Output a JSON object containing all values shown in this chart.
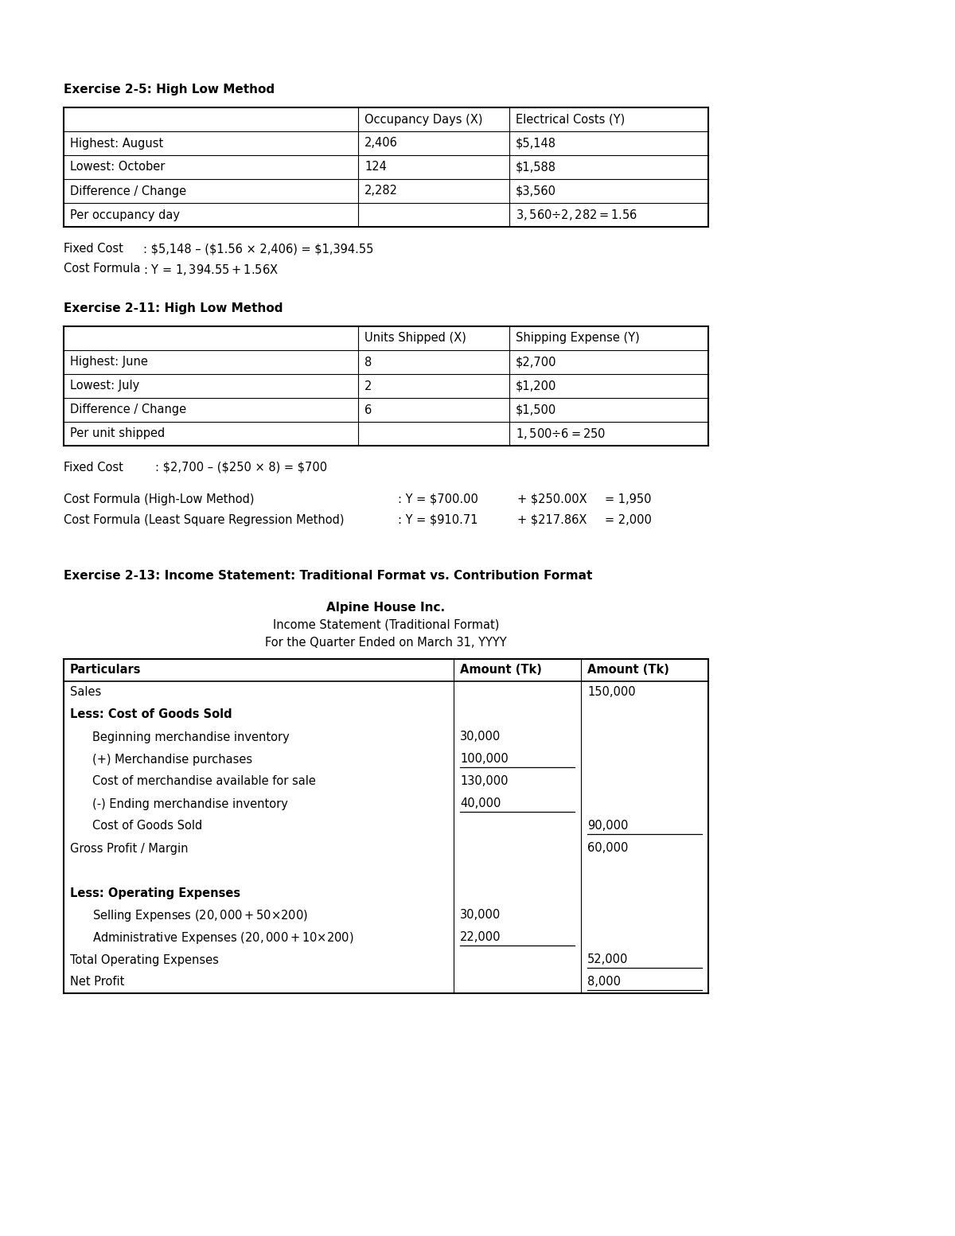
{
  "bg_color": "#ffffff",
  "page_width": 12.0,
  "page_height": 15.53,
  "ex25_title": "Exercise 2-5: High Low Method",
  "ex25_headers": [
    "",
    "Occupancy Days (X)",
    "Electrical Costs (Y)"
  ],
  "ex25_rows": [
    [
      "Highest: August",
      "2,406",
      "$5,148"
    ],
    [
      "Lowest: October",
      "124",
      "$1,588"
    ],
    [
      "Difference / Change",
      "2,282",
      "$3,560"
    ],
    [
      "Per occupancy day",
      "",
      "$3,560 ÷ 2,282 = $1.56"
    ]
  ],
  "ex25_fixed_cost_label": "Fixed Cost",
  "ex25_fixed_cost_val": ": $5,148 – ($1.56 × 2,406) = $1,394.55",
  "ex25_formula_label": "Cost Formula",
  "ex25_formula_val": ": Y = $1,394.55 + $1.56X",
  "ex211_title": "Exercise 2-11: High Low Method",
  "ex211_headers": [
    "",
    "Units Shipped (X)",
    "Shipping Expense (Y)"
  ],
  "ex211_rows": [
    [
      "Highest: June",
      "8",
      "$2,700"
    ],
    [
      "Lowest: July",
      "2",
      "$1,200"
    ],
    [
      "Difference / Change",
      "6",
      "$1,500"
    ],
    [
      "Per unit shipped",
      "",
      "$1,500 ÷ 6 = $250"
    ]
  ],
  "ex211_fixed_cost_label": "Fixed Cost",
  "ex211_fixed_cost_val": ": $2,700 – ($250 × 8) = $700",
  "ex211_cf_hlm_label": "Cost Formula (High-Low Method)",
  "ex211_cf_hlm_val": ": Y = $700.00",
  "ex211_cf_hlm_val2": "+ $250.00X",
  "ex211_cf_hlm_val3": "= 1,950",
  "ex211_cf_lsr_label": "Cost Formula (Least Square Regression Method)",
  "ex211_cf_lsr_val": ": Y = $910.71",
  "ex211_cf_lsr_val2": "+ $217.86X",
  "ex211_cf_lsr_val3": "= 2,000",
  "ex213_title": "Exercise 2-13: Income Statement: Traditional Format vs. Contribution Format",
  "ex213_company": "Alpine House Inc.",
  "ex213_stmt_type": "Income Statement (Traditional Format)",
  "ex213_period": "For the Quarter Ended on March 31, YYYY",
  "ex213_col_headers": [
    "Particulars",
    "Amount (Tk)",
    "Amount (Tk)"
  ],
  "ex213_rows": [
    {
      "label": "Sales",
      "indent": 0,
      "amt1": "",
      "amt2": "150,000",
      "bold": false,
      "underline1": false,
      "underline2": false
    },
    {
      "label": "Less: Cost of Goods Sold",
      "indent": 0,
      "amt1": "",
      "amt2": "",
      "bold": true,
      "underline1": false,
      "underline2": false
    },
    {
      "label": "Beginning merchandise inventory",
      "indent": 1,
      "amt1": "30,000",
      "amt2": "",
      "bold": false,
      "underline1": false,
      "underline2": false
    },
    {
      "label": "(+) Merchandise purchases",
      "indent": 1,
      "amt1": "100,000",
      "amt2": "",
      "bold": false,
      "underline1": true,
      "underline2": false
    },
    {
      "label": "Cost of merchandise available for sale",
      "indent": 1,
      "amt1": "130,000",
      "amt2": "",
      "bold": false,
      "underline1": false,
      "underline2": false
    },
    {
      "label": "(-) Ending merchandise inventory",
      "indent": 1,
      "amt1": "40,000",
      "amt2": "",
      "bold": false,
      "underline1": true,
      "underline2": false
    },
    {
      "label": "Cost of Goods Sold",
      "indent": 1,
      "amt1": "",
      "amt2": "90,000",
      "bold": false,
      "underline1": false,
      "underline2": true
    },
    {
      "label": "Gross Profit / Margin",
      "indent": 0,
      "amt1": "",
      "amt2": "60,000",
      "bold": false,
      "underline1": false,
      "underline2": false
    },
    {
      "label": "",
      "indent": 0,
      "amt1": "",
      "amt2": "",
      "bold": false,
      "underline1": false,
      "underline2": false
    },
    {
      "label": "Less: Operating Expenses",
      "indent": 0,
      "amt1": "",
      "amt2": "",
      "bold": true,
      "underline1": false,
      "underline2": false
    },
    {
      "label": "Selling Expenses ($20,000 + $50×200)",
      "indent": 1,
      "amt1": "30,000",
      "amt2": "",
      "bold": false,
      "underline1": false,
      "underline2": false
    },
    {
      "label": "Administrative Expenses ($20,000 + $10×200)",
      "indent": 1,
      "amt1": "22,000",
      "amt2": "",
      "bold": false,
      "underline1": true,
      "underline2": false
    },
    {
      "label": "Total Operating Expenses",
      "indent": 0,
      "amt1": "",
      "amt2": "52,000",
      "bold": false,
      "underline1": false,
      "underline2": true
    },
    {
      "label": "Net Profit",
      "indent": 0,
      "amt1": "",
      "amt2": "8,000",
      "bold": false,
      "underline1": false,
      "underline2": true
    }
  ]
}
